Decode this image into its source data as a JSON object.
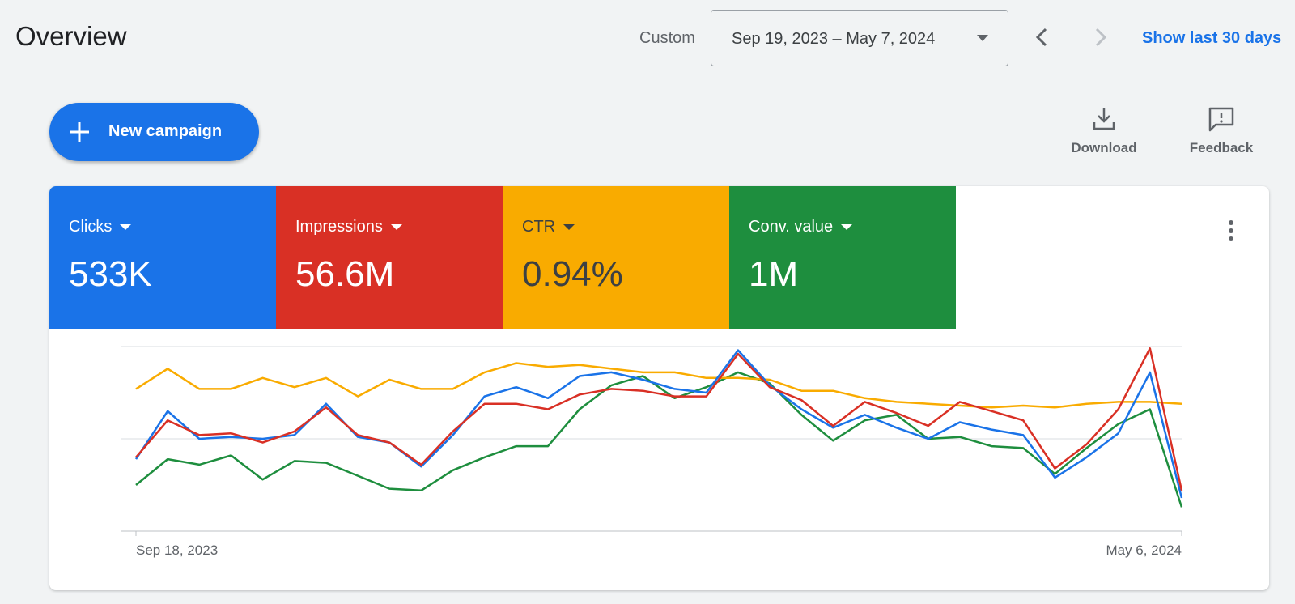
{
  "header": {
    "title": "Overview",
    "range_type": "Custom",
    "date_range": "Sep 19, 2023 – May 7, 2024",
    "show_last_link": "Show last 30 days"
  },
  "actions": {
    "new_campaign": "New campaign",
    "download": "Download",
    "feedback": "Feedback"
  },
  "metrics": [
    {
      "name": "Clicks",
      "value": "533K",
      "color": "#1a73e8",
      "text_color": "#ffffff"
    },
    {
      "name": "Impressions",
      "value": "56.6M",
      "color": "#d93025",
      "text_color": "#ffffff"
    },
    {
      "name": "CTR",
      "value": "0.94%",
      "color": "#f9ab00",
      "text_color": "#3c4043"
    },
    {
      "name": "Conv. value",
      "value": "1M",
      "color": "#1e8e3e",
      "text_color": "#ffffff"
    }
  ],
  "chart_data": {
    "type": "line",
    "x_start_label": "Sep 18, 2023",
    "x_end_label": "May 6, 2024",
    "ylim": [
      0,
      100
    ],
    "grid": true,
    "series": [
      {
        "name": "Clicks",
        "color": "#1a73e8",
        "values": [
          39,
          65,
          50,
          51,
          50,
          52,
          69,
          51,
          48,
          35,
          52,
          73,
          78,
          72,
          84,
          86,
          82,
          77,
          75,
          98,
          79,
          66,
          56,
          63,
          56,
          50,
          59,
          55,
          52,
          29,
          40,
          53,
          86,
          18
        ]
      },
      {
        "name": "Impressions",
        "color": "#d93025",
        "values": [
          40,
          60,
          52,
          53,
          48,
          54,
          67,
          52,
          48,
          36,
          54,
          69,
          69,
          66,
          74,
          77,
          76,
          73,
          73,
          96,
          78,
          71,
          57,
          70,
          64,
          57,
          70,
          65,
          60,
          34,
          47,
          66,
          99,
          22
        ]
      },
      {
        "name": "CTR",
        "color": "#f9ab00",
        "values": [
          77,
          88,
          77,
          77,
          83,
          78,
          83,
          73,
          82,
          77,
          77,
          86,
          91,
          89,
          90,
          88,
          86,
          86,
          83,
          83,
          82,
          76,
          76,
          72,
          70,
          69,
          68,
          67,
          68,
          67,
          69,
          70,
          70,
          69
        ]
      },
      {
        "name": "Conv. value",
        "color": "#1e8e3e",
        "values": [
          25,
          39,
          36,
          41,
          28,
          38,
          37,
          30,
          23,
          22,
          33,
          40,
          46,
          46,
          66,
          79,
          84,
          72,
          78,
          86,
          80,
          63,
          49,
          60,
          63,
          50,
          51,
          46,
          45,
          31,
          45,
          58,
          66,
          13
        ]
      }
    ]
  }
}
